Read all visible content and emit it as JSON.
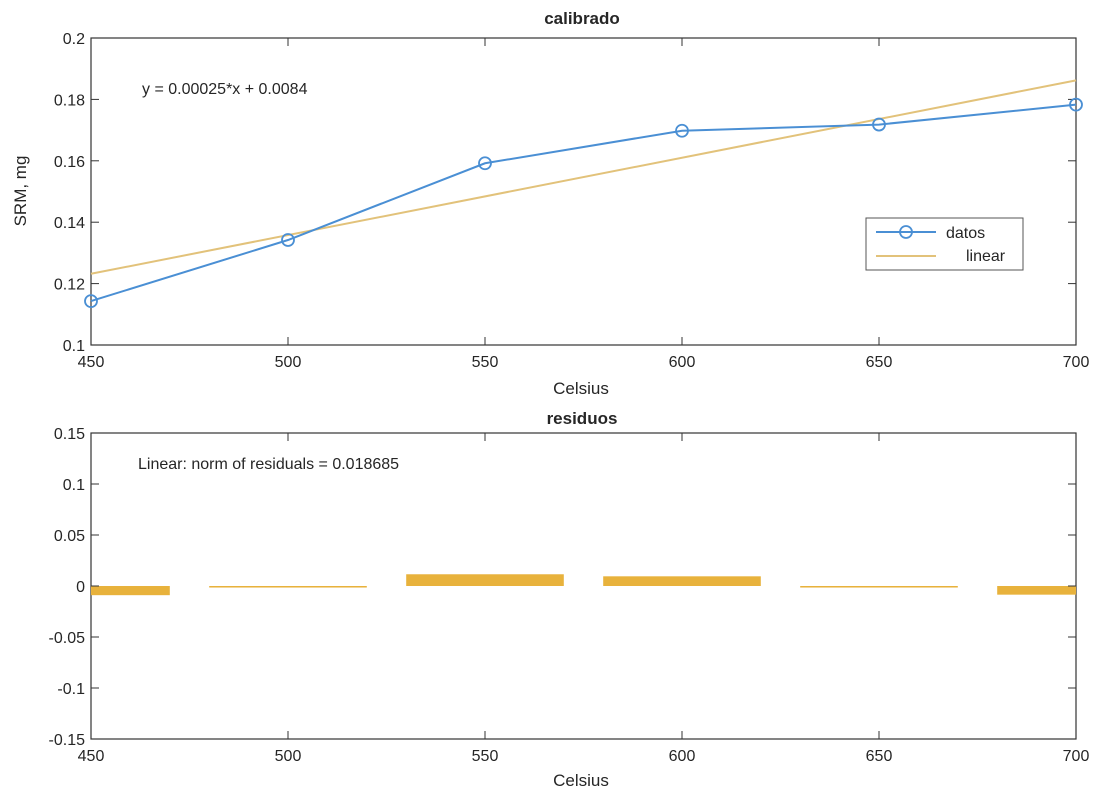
{
  "colors": {
    "data_line": "#4a8fd4",
    "fit_line": "#e2c27a",
    "bar_fill": "#e8b23c",
    "axis": "#333333",
    "text": "#262626"
  },
  "chart_data": [
    {
      "type": "line",
      "title": "calibrado",
      "xlabel": "Celsius",
      "ylabel": "SRM, mg",
      "xlim": [
        450,
        700
      ],
      "ylim": [
        0.1,
        0.2
      ],
      "xticks": [
        450,
        500,
        550,
        600,
        650,
        700
      ],
      "xtick_labels": [
        "450",
        "500",
        "550",
        "600",
        "650",
        "700"
      ],
      "yticks": [
        0.1,
        0.12,
        0.14,
        0.16,
        0.18,
        0.2
      ],
      "ytick_labels": [
        "0.1",
        "0.12",
        "0.14",
        "0.16",
        "0.18",
        "0.2"
      ],
      "annotation": "y = 0.00025*x + 0.0084",
      "legend": {
        "position": "right",
        "entries": [
          "datos",
          "linear"
        ]
      },
      "grid": false,
      "series": [
        {
          "name": "datos",
          "marker": "circle",
          "x": [
            450,
            500,
            550,
            600,
            650,
            700
          ],
          "y": [
            0.1143,
            0.1342,
            0.1592,
            0.1698,
            0.1718,
            0.1783
          ]
        },
        {
          "name": "linear",
          "x": [
            450,
            700
          ],
          "y": [
            0.1232,
            0.1862
          ]
        }
      ]
    },
    {
      "type": "bar",
      "title": "residuos",
      "xlabel": "Celsius",
      "xlim": [
        450,
        700
      ],
      "ylim": [
        -0.15,
        0.15
      ],
      "xticks": [
        450,
        500,
        550,
        600,
        650,
        700
      ],
      "xtick_labels": [
        "450",
        "500",
        "550",
        "600",
        "650",
        "700"
      ],
      "yticks": [
        -0.15,
        -0.1,
        -0.05,
        0,
        0.05,
        0.1,
        0.15
      ],
      "ytick_labels": [
        "-0.15",
        "-0.1",
        "-0.05",
        "0",
        "0.05",
        "0.1",
        "0.15"
      ],
      "annotation": "Linear: norm of residuals = 0.018685",
      "grid": false,
      "x": [
        450,
        500,
        550,
        600,
        650,
        700
      ],
      "values": [
        -0.009,
        -0.0015,
        0.0115,
        0.0095,
        -0.0015,
        -0.0085
      ],
      "bar_width": 40
    }
  ]
}
